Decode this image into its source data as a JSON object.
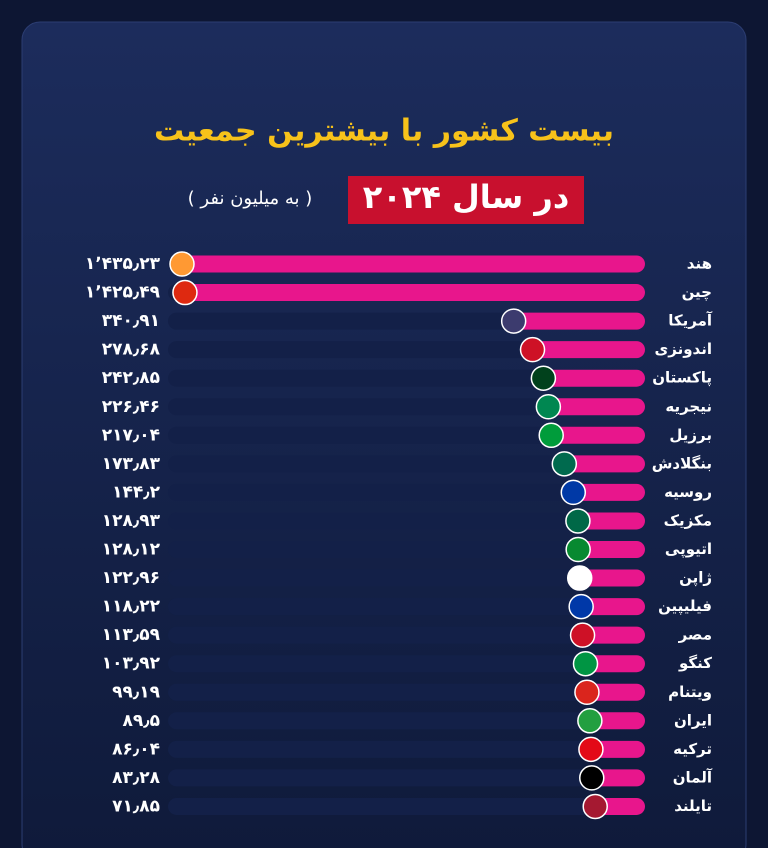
{
  "chart_data": {
    "type": "bar",
    "orientation": "horizontal",
    "title": "بیست کشور با بیشترین جمعیت",
    "subtitle": "در سال ۲۰۲۴",
    "unit_label": "( به میلیون نفر )",
    "categories": [
      "هند",
      "چین",
      "آمریکا",
      "اندونزی",
      "پاکستان",
      "نیجریه",
      "برزیل",
      "بنگلادش",
      "روسیه",
      "مکزیک",
      "اتیوپی",
      "ژاپن",
      "فیلیپین",
      "مصر",
      "کنگو",
      "ویتنام",
      "ایران",
      "ترکیه",
      "آلمان",
      "تایلند"
    ],
    "values": [
      1435.23,
      1425.49,
      340.91,
      278.68,
      242.85,
      226.46,
      217.04,
      173.83,
      144.2,
      128.93,
      128.12,
      122.96,
      118.22,
      113.59,
      103.92,
      99.19,
      89.5,
      86.04,
      83.28,
      71.85
    ],
    "value_labels": [
      "۱٬۴۳۵٫۲۳",
      "۱٬۴۲۵٫۴۹",
      "۳۴۰٫۹۱",
      "۲۷۸٫۶۸",
      "۲۴۲٫۸۵",
      "۲۲۶٫۴۶",
      "۲۱۷٫۰۴",
      "۱۷۳٫۸۳",
      "۱۴۴٫۲",
      "۱۲۸٫۹۳",
      "۱۲۸٫۱۲",
      "۱۲۲٫۹۶",
      "۱۱۸٫۲۲",
      "۱۱۳٫۵۹",
      "۱۰۳٫۹۲",
      "۹۹٫۱۹",
      "۸۹٫۵",
      "۸۶٫۰۴",
      "۸۳٫۲۸",
      "۷۱٫۸۵"
    ],
    "color": "#e8168c",
    "highlight": "ایران",
    "highlight_color": "#f7c21a"
  }
}
